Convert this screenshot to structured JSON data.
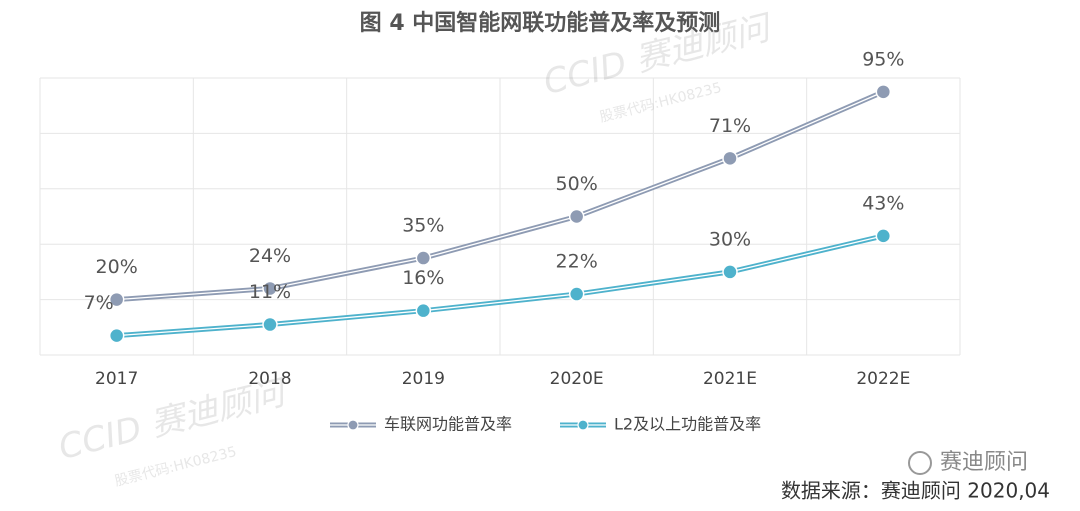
{
  "chart_data": {
    "type": "line",
    "title": "图 4  中国智能网联功能普及率及预测",
    "categories": [
      "2017",
      "2018",
      "2019",
      "2020E",
      "2021E",
      "2022E"
    ],
    "series": [
      {
        "name": "车联网功能普及率",
        "color": "#8e9bb3",
        "values": [
          20,
          24,
          35,
          50,
          71,
          95
        ],
        "value_labels": [
          "20%",
          "24%",
          "35%",
          "50%",
          "71%",
          "95%"
        ]
      },
      {
        "name": "L2及以上功能普及率",
        "color": "#4eb2cc",
        "values": [
          7,
          11,
          16,
          22,
          30,
          43
        ],
        "value_labels": [
          "7%",
          "11%",
          "16%",
          "22%",
          "30%",
          "43%"
        ]
      }
    ],
    "ylim": [
      0,
      100
    ],
    "yticks": [
      0,
      20,
      40,
      60,
      80,
      100
    ],
    "grid": true,
    "source": "数据来源：赛迪顾问    2020,04",
    "logo": "赛迪顾问",
    "watermark": {
      "brand": "CCID 赛迪顾问",
      "code": "股票代码:HK08235"
    }
  }
}
